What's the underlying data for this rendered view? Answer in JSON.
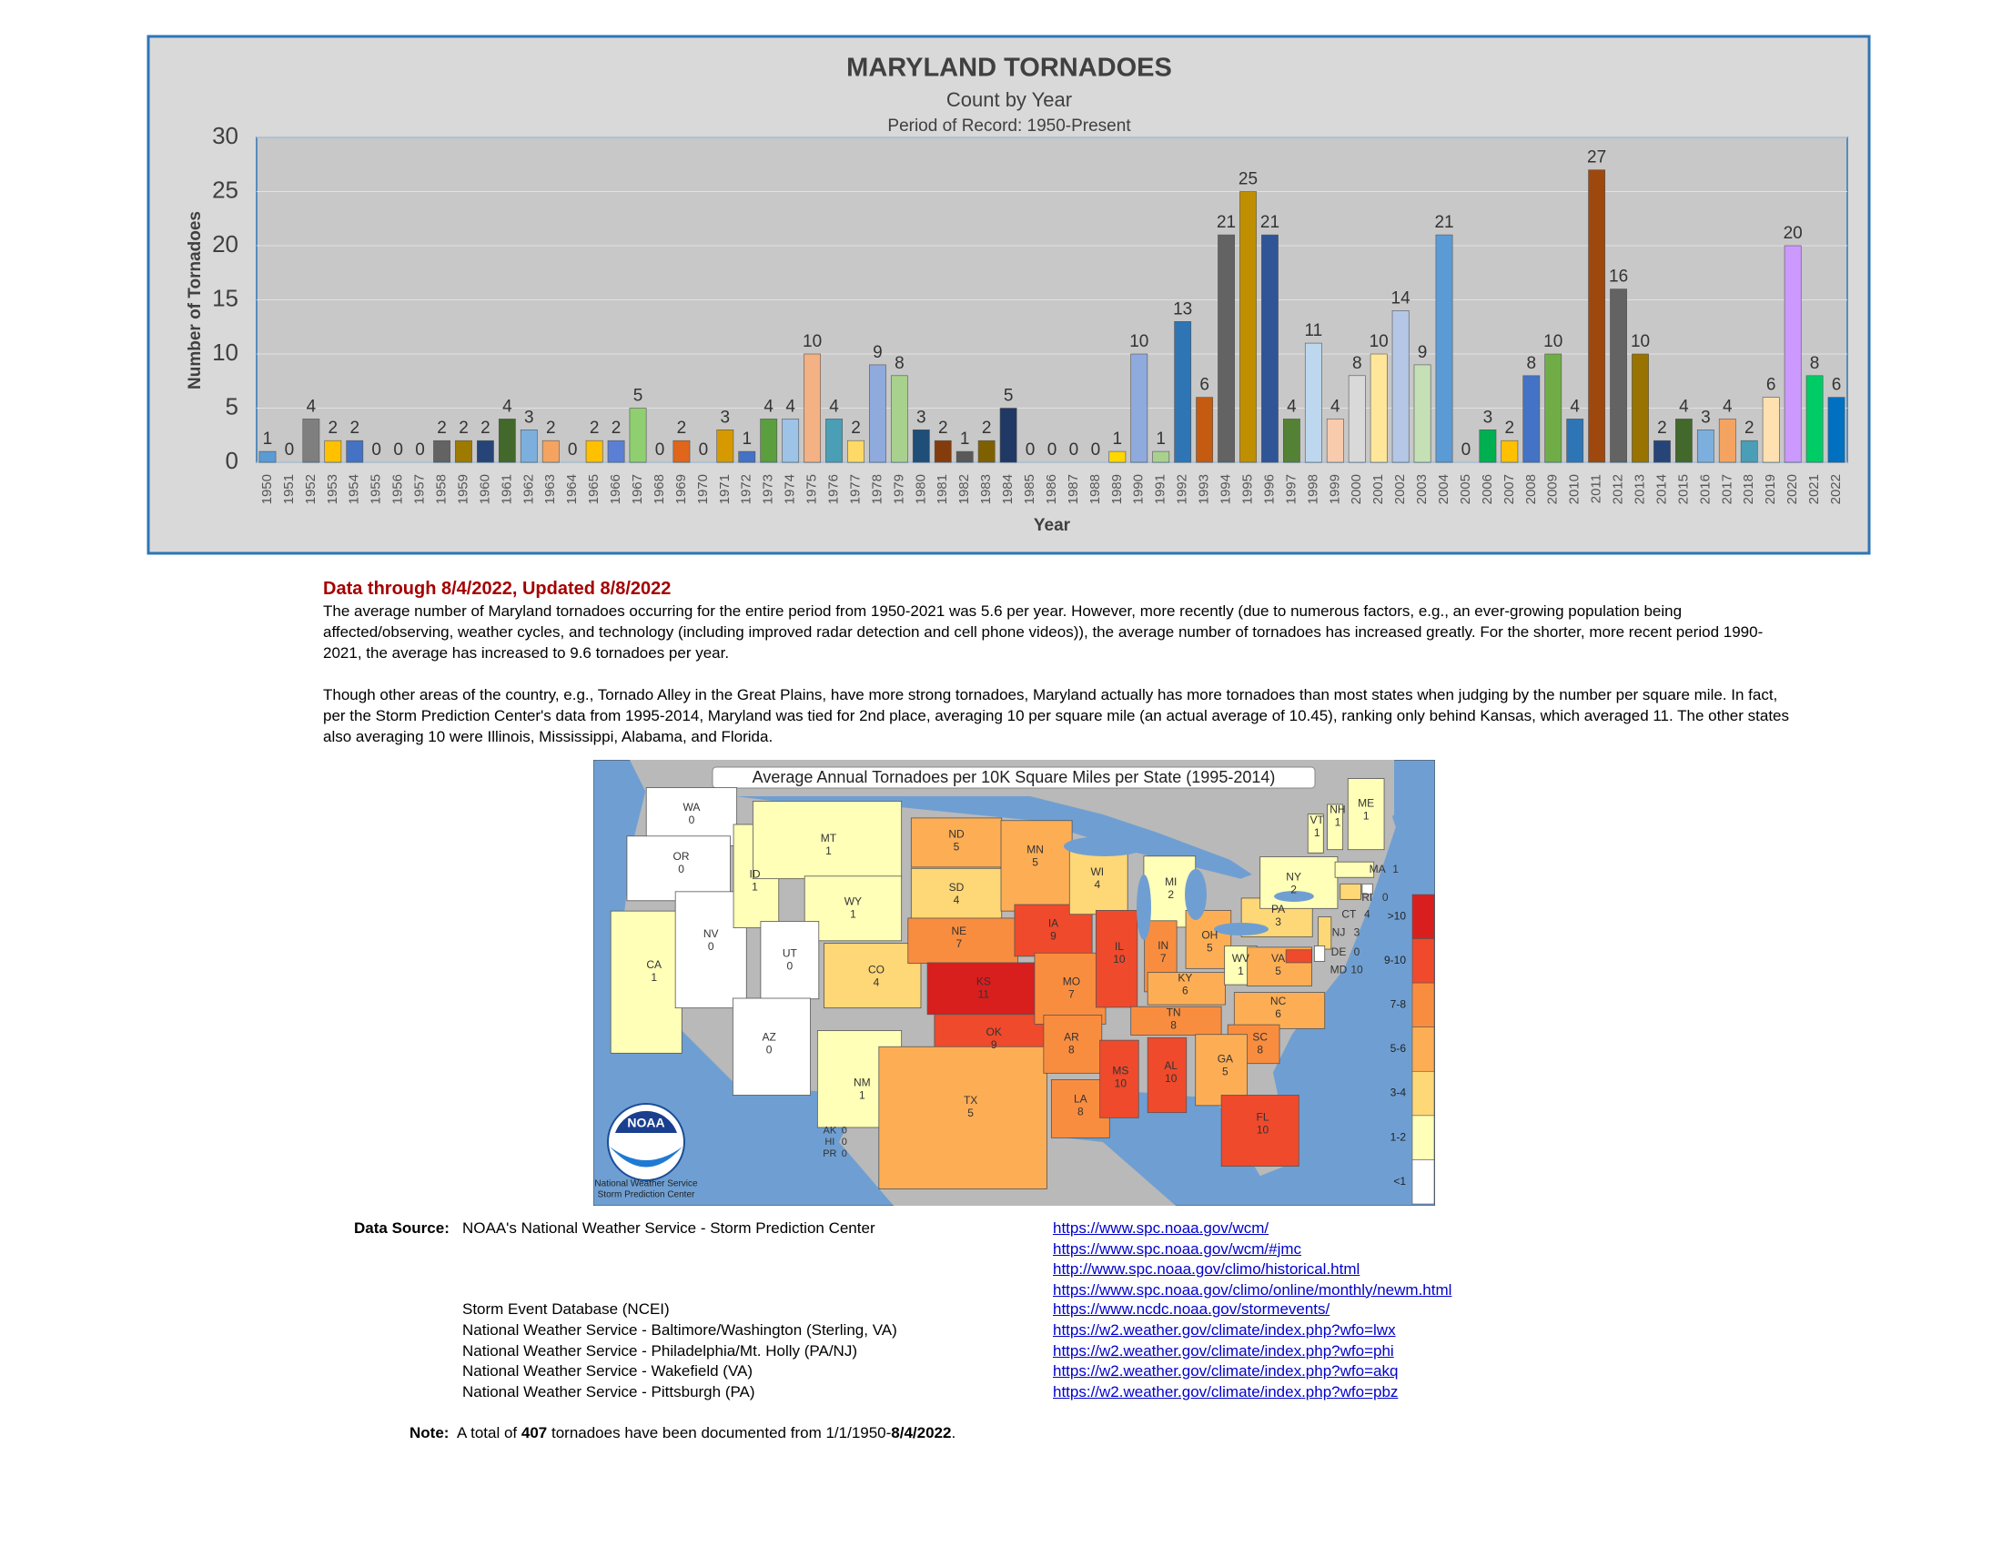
{
  "chart_data": {
    "type": "bar",
    "title": "MARYLAND TORNADOES",
    "subtitle": "Count by Year",
    "period": "Period of Record: 1950-Present",
    "xlabel": "Year",
    "ylabel": "Number of Tornadoes",
    "categories": [
      "1950",
      "1951",
      "1952",
      "1953",
      "1954",
      "1955",
      "1956",
      "1957",
      "1958",
      "1959",
      "1960",
      "1961",
      "1962",
      "1963",
      "1964",
      "1965",
      "1966",
      "1967",
      "1968",
      "1969",
      "1970",
      "1971",
      "1972",
      "1973",
      "1974",
      "1975",
      "1976",
      "1977",
      "1978",
      "1979",
      "1980",
      "1981",
      "1982",
      "1983",
      "1984",
      "1985",
      "1986",
      "1987",
      "1988",
      "1989",
      "1990",
      "1991",
      "1992",
      "1993",
      "1994",
      "1995",
      "1996",
      "1997",
      "1998",
      "1999",
      "2000",
      "2001",
      "2002",
      "2003",
      "2004",
      "2005",
      "2006",
      "2007",
      "2008",
      "2009",
      "2010",
      "2011",
      "2012",
      "2013",
      "2014",
      "2015",
      "2016",
      "2017",
      "2018",
      "2019",
      "2020",
      "2021",
      "2022"
    ],
    "values": [
      1,
      0,
      4,
      2,
      2,
      0,
      0,
      0,
      2,
      2,
      2,
      4,
      3,
      2,
      0,
      2,
      2,
      5,
      0,
      2,
      0,
      3,
      1,
      4,
      4,
      10,
      4,
      2,
      9,
      8,
      3,
      2,
      1,
      2,
      5,
      0,
      0,
      0,
      0,
      1,
      10,
      1,
      13,
      6,
      21,
      25,
      21,
      4,
      11,
      4,
      8,
      10,
      14,
      9,
      21,
      0,
      3,
      2,
      8,
      10,
      4,
      27,
      16,
      10,
      2,
      4,
      3,
      4,
      2,
      6,
      20,
      8,
      6
    ],
    "colors": [
      "#5b9bd5",
      "#a5a5a5",
      "#7f7f7f",
      "#ffc000",
      "#4472c4",
      "#ed7d31",
      "#a5a5a5",
      "#ffc000",
      "#636363",
      "#9e7a00",
      "#264478",
      "#43682b",
      "#7cafdd",
      "#f4a460",
      "#a5a5a5",
      "#ffc000",
      "#5b7fd5",
      "#8fcf6f",
      "#ed7d31",
      "#e0661b",
      "#a5a5a5",
      "#d69a00",
      "#4472c4",
      "#5a9e3e",
      "#9dc3e6",
      "#f4b183",
      "#4a9eb5",
      "#ffd966",
      "#8faadc",
      "#a9d18e",
      "#1f4e79",
      "#843c0c",
      "#595959",
      "#7f6000",
      "#203864",
      "#a5a5a5",
      "#a5a5a5",
      "#a5a5a5",
      "#a5a5a5",
      "#ffd700",
      "#8faadc",
      "#a9d18e",
      "#2e75b6",
      "#c55a11",
      "#636363",
      "#bf8f00",
      "#2f5597",
      "#548235",
      "#bdd7ee",
      "#f8cbad",
      "#d9d9d9",
      "#ffe699",
      "#b4c7e7",
      "#c5e0b4",
      "#5b9bd5",
      "#a5a5a5",
      "#00b050",
      "#ffc000",
      "#4472c4",
      "#70ad47",
      "#2e75b6",
      "#9e480e",
      "#636363",
      "#997300",
      "#264478",
      "#43682b",
      "#7cafdd",
      "#f4a460",
      "#4a9eb5",
      "#ffe0b0",
      "#cc99ff",
      "#00cc66",
      "#0070c0"
    ],
    "ylim": [
      0,
      30
    ],
    "yticks": [
      0,
      5,
      10,
      15,
      20,
      25,
      30
    ],
    "grid": true
  },
  "document": {
    "heading": "Data through 8/4/2022, Updated 8/8/2022",
    "paragraphs": [
      "The average number of Maryland tornadoes occurring for the entire period from 1950-2021 was 5.6 per year. However, more recently (due to numerous factors, e.g., an ever-growing population being affected/observing, weather cycles, and technology (including improved radar detection and cell phone videos)), the average number of tornadoes has increased greatly. For the shorter, more recent period 1990-2021, the average has increased to 9.6 tornadoes per year.",
      "Though other areas of the country, e.g., Tornado Alley in the Great Plains, have more strong tornadoes, Maryland actually has more tornadoes than most states when judging by the number per square mile. In fact, per the Storm Prediction Center's data from 1995-2014, Maryland was tied for 2nd place, averaging 10 per square mile (an actual average of 10.45), ranking only behind Kansas, which averaged 11.  The other states also averaging 10 were Illinois, Mississippi, Alabama, and Florida."
    ],
    "map": {
      "title": "Average Annual Tornadoes per 10K Square Miles per State (1995-2014)",
      "logo": "NOAA",
      "logo_lines": [
        "National Weather Service",
        "Storm Prediction Center"
      ],
      "legend": [
        {
          "label": ">10",
          "color": "#d91e1e"
        },
        {
          "label": "9-10",
          "color": "#ef4a2c"
        },
        {
          "label": "7-8",
          "color": "#f98d3f"
        },
        {
          "label": "5-6",
          "color": "#fdae55"
        },
        {
          "label": "3-4",
          "color": "#fed776"
        },
        {
          "label": "1-2",
          "color": "#ffffb8"
        },
        {
          "label": "<1",
          "color": "#ffffff"
        }
      ],
      "states": [
        {
          "abbr": "WA",
          "value": 0,
          "color": "#ffffff"
        },
        {
          "abbr": "OR",
          "value": 0,
          "color": "#ffffff"
        },
        {
          "abbr": "CA",
          "value": 1,
          "color": "#ffffb8"
        },
        {
          "abbr": "NV",
          "value": 0,
          "color": "#ffffff"
        },
        {
          "abbr": "ID",
          "value": 1,
          "color": "#ffffb8"
        },
        {
          "abbr": "MT",
          "value": 1,
          "color": "#ffffb8"
        },
        {
          "abbr": "WY",
          "value": 1,
          "color": "#ffffb8"
        },
        {
          "abbr": "UT",
          "value": 0,
          "color": "#ffffff"
        },
        {
          "abbr": "AZ",
          "value": 0,
          "color": "#ffffff"
        },
        {
          "abbr": "CO",
          "value": 4,
          "color": "#fed776"
        },
        {
          "abbr": "NM",
          "value": 1,
          "color": "#ffffb8"
        },
        {
          "abbr": "ND",
          "value": 5,
          "color": "#fdae55"
        },
        {
          "abbr": "SD",
          "value": 4,
          "color": "#fed776"
        },
        {
          "abbr": "NE",
          "value": 7,
          "color": "#f98d3f"
        },
        {
          "abbr": "KS",
          "value": 11,
          "color": "#d91e1e"
        },
        {
          "abbr": "OK",
          "value": 9,
          "color": "#ef4a2c"
        },
        {
          "abbr": "TX",
          "value": 5,
          "color": "#fdae55"
        },
        {
          "abbr": "MN",
          "value": 5,
          "color": "#fdae55"
        },
        {
          "abbr": "IA",
          "value": 9,
          "color": "#ef4a2c"
        },
        {
          "abbr": "MO",
          "value": 7,
          "color": "#f98d3f"
        },
        {
          "abbr": "AR",
          "value": 8,
          "color": "#f98d3f"
        },
        {
          "abbr": "LA",
          "value": 8,
          "color": "#f98d3f"
        },
        {
          "abbr": "WI",
          "value": 4,
          "color": "#fed776"
        },
        {
          "abbr": "IL",
          "value": 10,
          "color": "#ef4a2c"
        },
        {
          "abbr": "MS",
          "value": 10,
          "color": "#ef4a2c"
        },
        {
          "abbr": "MI",
          "value": 2,
          "color": "#ffffb8"
        },
        {
          "abbr": "IN",
          "value": 7,
          "color": "#f98d3f"
        },
        {
          "abbr": "KY",
          "value": 6,
          "color": "#fdae55"
        },
        {
          "abbr": "TN",
          "value": 8,
          "color": "#f98d3f"
        },
        {
          "abbr": "AL",
          "value": 10,
          "color": "#ef4a2c"
        },
        {
          "abbr": "OH",
          "value": 5,
          "color": "#fdae55"
        },
        {
          "abbr": "WV",
          "value": 1,
          "color": "#ffffb8"
        },
        {
          "abbr": "VA",
          "value": 5,
          "color": "#fdae55"
        },
        {
          "abbr": "NC",
          "value": 6,
          "color": "#fdae55"
        },
        {
          "abbr": "SC",
          "value": 8,
          "color": "#f98d3f"
        },
        {
          "abbr": "GA",
          "value": 5,
          "color": "#fdae55"
        },
        {
          "abbr": "FL",
          "value": 10,
          "color": "#ef4a2c"
        },
        {
          "abbr": "PA",
          "value": 3,
          "color": "#fed776"
        },
        {
          "abbr": "NY",
          "value": 2,
          "color": "#ffffb8"
        },
        {
          "abbr": "VT",
          "value": 1,
          "color": "#ffffb8"
        },
        {
          "abbr": "NH",
          "value": 1,
          "color": "#ffffb8"
        },
        {
          "abbr": "ME",
          "value": 1,
          "color": "#ffffb8"
        },
        {
          "abbr": "MA",
          "value": 1,
          "color": "#ffffb8"
        },
        {
          "abbr": "RI",
          "value": 0,
          "color": "#ffffff"
        },
        {
          "abbr": "CT",
          "value": 4,
          "color": "#fed776"
        },
        {
          "abbr": "NJ",
          "value": 3,
          "color": "#fed776"
        },
        {
          "abbr": "DE",
          "value": 0,
          "color": "#ffffff"
        },
        {
          "abbr": "MD",
          "value": 10,
          "color": "#ef4a2c"
        }
      ],
      "other": [
        {
          "abbr": "AK",
          "value": 0
        },
        {
          "abbr": "HI",
          "value": 0
        },
        {
          "abbr": "PR",
          "value": 0
        }
      ]
    },
    "source_label": "Data Source:",
    "sources": [
      {
        "name": "NOAA's National Weather Service - Storm Prediction Center",
        "links": [
          "https://www.spc.noaa.gov/wcm/",
          "https://www.spc.noaa.gov/wcm/#jmc",
          "http://www.spc.noaa.gov/climo/historical.html",
          "https://www.spc.noaa.gov/climo/online/monthly/newm.html"
        ]
      },
      {
        "name": "Storm Event Database (NCEI)",
        "links": [
          "https://www.ncdc.noaa.gov/stormevents/"
        ]
      },
      {
        "name": "National Weather Service - Baltimore/Washington (Sterling, VA)",
        "links": [
          "https://w2.weather.gov/climate/index.php?wfo=lwx"
        ]
      },
      {
        "name": "National Weather Service - Philadelphia/Mt. Holly  (PA/NJ)",
        "links": [
          "https://w2.weather.gov/climate/index.php?wfo=phi"
        ]
      },
      {
        "name": "National Weather Service - Wakefield (VA)",
        "links": [
          "https://w2.weather.gov/climate/index.php?wfo=akq"
        ]
      },
      {
        "name": "National Weather Service - Pittsburgh (PA)",
        "links": [
          "https://w2.weather.gov/climate/index.php?wfo=pbz"
        ]
      }
    ],
    "note": {
      "label": "Note:",
      "text_1": "A total of",
      "count": "407",
      "text_2": "tornadoes have been documented from 1/1/1950-",
      "date": "8/4/2022",
      "text_3": "."
    }
  }
}
